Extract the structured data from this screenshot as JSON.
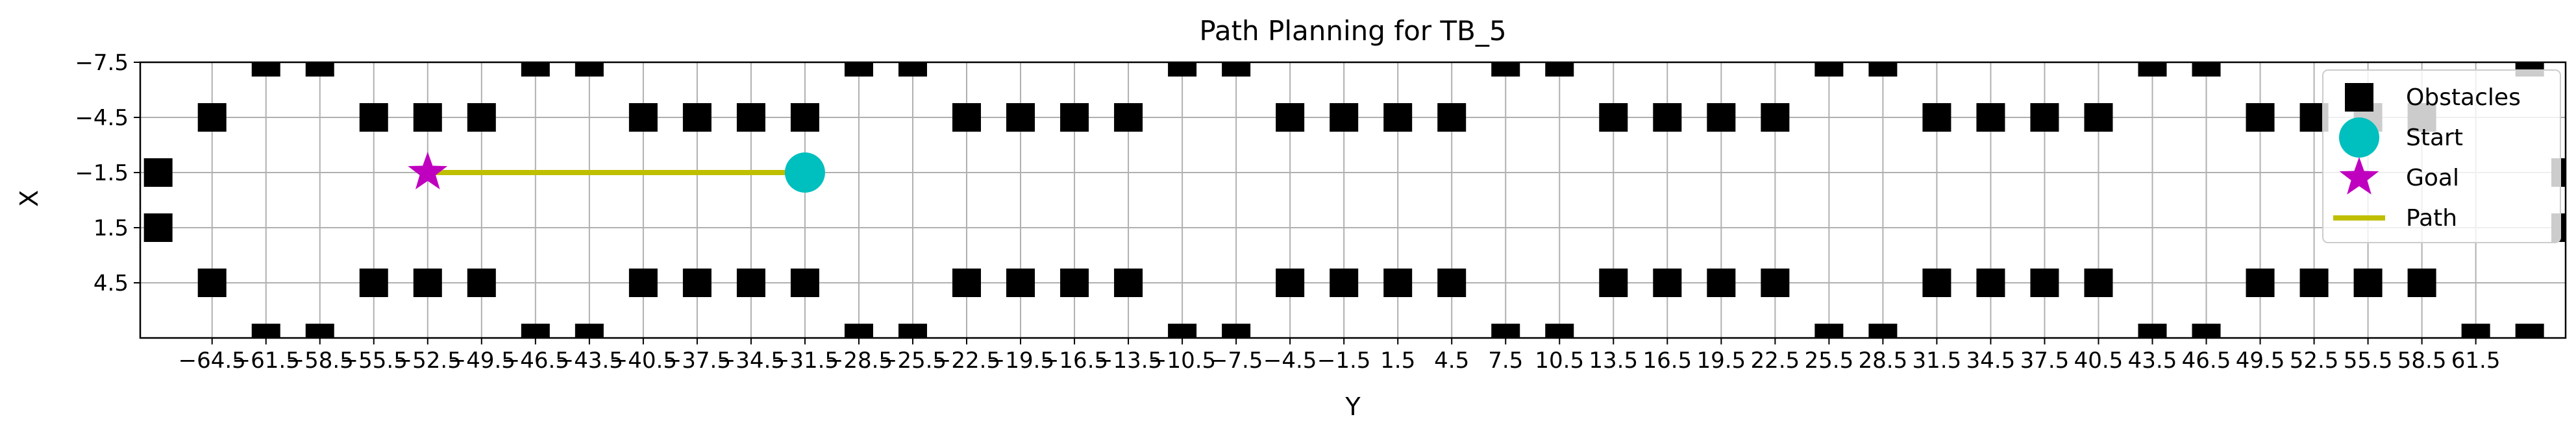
{
  "chart_data": {
    "type": "scatter",
    "title": "Path Planning for TB_5",
    "xlabel": "Y",
    "ylabel": "X",
    "xlim": [
      -68.5,
      66.5
    ],
    "ylim": [
      7.5,
      -7.5
    ],
    "y_inverted": true,
    "grid": true,
    "legend_position": "upper right",
    "xticks": [
      -64.5,
      -61.5,
      -58.5,
      -55.5,
      -52.5,
      -49.5,
      -46.5,
      -43.5,
      -40.5,
      -37.5,
      -34.5,
      -31.5,
      -28.5,
      -25.5,
      -22.5,
      -19.5,
      -16.5,
      -13.5,
      -10.5,
      -7.5,
      -4.5,
      -1.5,
      1.5,
      4.5,
      7.5,
      10.5,
      13.5,
      16.5,
      19.5,
      22.5,
      25.5,
      28.5,
      31.5,
      34.5,
      37.5,
      40.5,
      43.5,
      46.5,
      49.5,
      52.5,
      55.5,
      58.5,
      61.5
    ],
    "xtick_labels": [
      "−64.5",
      "−61.5",
      "−58.5",
      "−55.5",
      "−52.5",
      "−49.5",
      "−46.5",
      "−43.5",
      "−40.5",
      "−37.5",
      "−34.5",
      "−31.5",
      "−28.5",
      "−25.5",
      "−22.5",
      "−19.5",
      "−16.5",
      "−13.5",
      "−10.5",
      "−7.5",
      "−4.5",
      "−1.5",
      "1.5",
      "4.5",
      "7.5",
      "10.5",
      "13.5",
      "16.5",
      "19.5",
      "22.5",
      "25.5",
      "28.5",
      "31.5",
      "34.5",
      "37.5",
      "40.5",
      "43.5",
      "46.5",
      "49.5",
      "52.5",
      "55.5",
      "58.5",
      "61.5"
    ],
    "yticks": [
      -7.5,
      -4.5,
      -1.5,
      1.5,
      4.5
    ],
    "ytick_labels": [
      "−7.5",
      "−4.5",
      "−1.5",
      "1.5",
      "4.5"
    ],
    "series": [
      {
        "name": "Obstacles",
        "marker": "square",
        "color": "#000000",
        "points": [
          [
            -61.5,
            -7.5
          ],
          [
            -58.5,
            -7.5
          ],
          [
            -43.5,
            -7.5
          ],
          [
            -46.5,
            -7.5
          ],
          [
            -28.5,
            -7.5
          ],
          [
            -25.5,
            -7.5
          ],
          [
            -10.5,
            -7.5
          ],
          [
            -7.5,
            -7.5
          ],
          [
            7.5,
            -7.5
          ],
          [
            10.5,
            -7.5
          ],
          [
            25.5,
            -7.5
          ],
          [
            28.5,
            -7.5
          ],
          [
            43.5,
            -7.5
          ],
          [
            46.5,
            -7.5
          ],
          [
            64.5,
            -7.5
          ],
          [
            -64.5,
            -4.5
          ],
          [
            -55.5,
            -4.5
          ],
          [
            -52.5,
            -4.5
          ],
          [
            -49.5,
            -4.5
          ],
          [
            -40.5,
            -4.5
          ],
          [
            -37.5,
            -4.5
          ],
          [
            -34.5,
            -4.5
          ],
          [
            -31.5,
            -4.5
          ],
          [
            -22.5,
            -4.5
          ],
          [
            -19.5,
            -4.5
          ],
          [
            -16.5,
            -4.5
          ],
          [
            -13.5,
            -4.5
          ],
          [
            -4.5,
            -4.5
          ],
          [
            -1.5,
            -4.5
          ],
          [
            1.5,
            -4.5
          ],
          [
            4.5,
            -4.5
          ],
          [
            13.5,
            -4.5
          ],
          [
            16.5,
            -4.5
          ],
          [
            19.5,
            -4.5
          ],
          [
            22.5,
            -4.5
          ],
          [
            31.5,
            -4.5
          ],
          [
            34.5,
            -4.5
          ],
          [
            37.5,
            -4.5
          ],
          [
            40.5,
            -4.5
          ],
          [
            49.5,
            -4.5
          ],
          [
            52.5,
            -4.5
          ],
          [
            55.5,
            -4.5
          ],
          [
            58.5,
            -4.5
          ],
          [
            -67.5,
            -1.5
          ],
          [
            -67.5,
            1.5
          ],
          [
            66.5,
            -1.5
          ],
          [
            66.5,
            1.5
          ],
          [
            -64.5,
            4.5
          ],
          [
            -55.5,
            4.5
          ],
          [
            -52.5,
            4.5
          ],
          [
            -49.5,
            4.5
          ],
          [
            -40.5,
            4.5
          ],
          [
            -37.5,
            4.5
          ],
          [
            -34.5,
            4.5
          ],
          [
            -31.5,
            4.5
          ],
          [
            -22.5,
            4.5
          ],
          [
            -19.5,
            4.5
          ],
          [
            -16.5,
            4.5
          ],
          [
            -13.5,
            4.5
          ],
          [
            -4.5,
            4.5
          ],
          [
            -1.5,
            4.5
          ],
          [
            1.5,
            4.5
          ],
          [
            4.5,
            4.5
          ],
          [
            13.5,
            4.5
          ],
          [
            16.5,
            4.5
          ],
          [
            19.5,
            4.5
          ],
          [
            22.5,
            4.5
          ],
          [
            31.5,
            4.5
          ],
          [
            34.5,
            4.5
          ],
          [
            37.5,
            4.5
          ],
          [
            40.5,
            4.5
          ],
          [
            49.5,
            4.5
          ],
          [
            52.5,
            4.5
          ],
          [
            55.5,
            4.5
          ],
          [
            58.5,
            4.5
          ],
          [
            -61.5,
            7.5
          ],
          [
            -58.5,
            7.5
          ],
          [
            -46.5,
            7.5
          ],
          [
            -43.5,
            7.5
          ],
          [
            -28.5,
            7.5
          ],
          [
            -25.5,
            7.5
          ],
          [
            -10.5,
            7.5
          ],
          [
            -7.5,
            7.5
          ],
          [
            7.5,
            7.5
          ],
          [
            10.5,
            7.5
          ],
          [
            25.5,
            7.5
          ],
          [
            28.5,
            7.5
          ],
          [
            43.5,
            7.5
          ],
          [
            46.5,
            7.5
          ],
          [
            61.5,
            7.5
          ],
          [
            64.5,
            7.5
          ]
        ]
      },
      {
        "name": "Start",
        "marker": "circle",
        "color": "#00bfbf",
        "points": [
          [
            -31.5,
            -1.5
          ]
        ]
      },
      {
        "name": "Goal",
        "marker": "star",
        "color": "#bf00bf",
        "points": [
          [
            -52.5,
            -1.5
          ]
        ]
      },
      {
        "name": "Path",
        "marker": "line",
        "color": "#bfbf00",
        "points": [
          [
            -31.5,
            -1.5
          ],
          [
            -52.5,
            -1.5
          ]
        ]
      }
    ]
  }
}
